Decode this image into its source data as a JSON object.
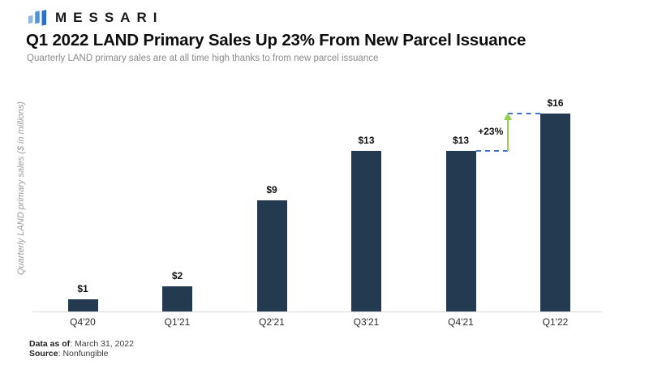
{
  "header": {
    "brand": "MESSARI",
    "title": "Q1 2022 LAND Primary Sales Up 23% From New Parcel Issuance",
    "subtitle": "Quarterly LAND primary sales are at all time high thanks to from new parcel issuance"
  },
  "chart_data": {
    "type": "bar",
    "title": "Q1 2022 LAND Primary Sales Up 23% From New Parcel Issuance",
    "categories": [
      "Q4'20",
      "Q1'21",
      "Q2'21",
      "Q3'21",
      "Q4'21",
      "Q1'22"
    ],
    "values": [
      1,
      2,
      9,
      13,
      13,
      16
    ],
    "value_labels": [
      "$1",
      "$2",
      "$9",
      "$13",
      "$13",
      "$16"
    ],
    "xlabel": "",
    "ylabel": "Quarterly LAND primary sales ($ in millions)",
    "ylim": [
      0,
      16
    ],
    "grid": false,
    "legend": "none",
    "bar_color": "#243A50",
    "axis_line_color": "#D9D9D9",
    "annotation": {
      "label": "+23%",
      "from_index": 4,
      "to_index": 5,
      "arrow_color": "#92D050",
      "dash_color": "#4472C4"
    }
  },
  "logo_colors": [
    "#8CB9EB",
    "#4E94DB",
    "#2D6FC8"
  ],
  "footer": {
    "data_as_of_label": "Data as of",
    "data_as_of_value": ": March 31, 2022",
    "source_label": "Source",
    "source_value": ": Nonfungible"
  }
}
